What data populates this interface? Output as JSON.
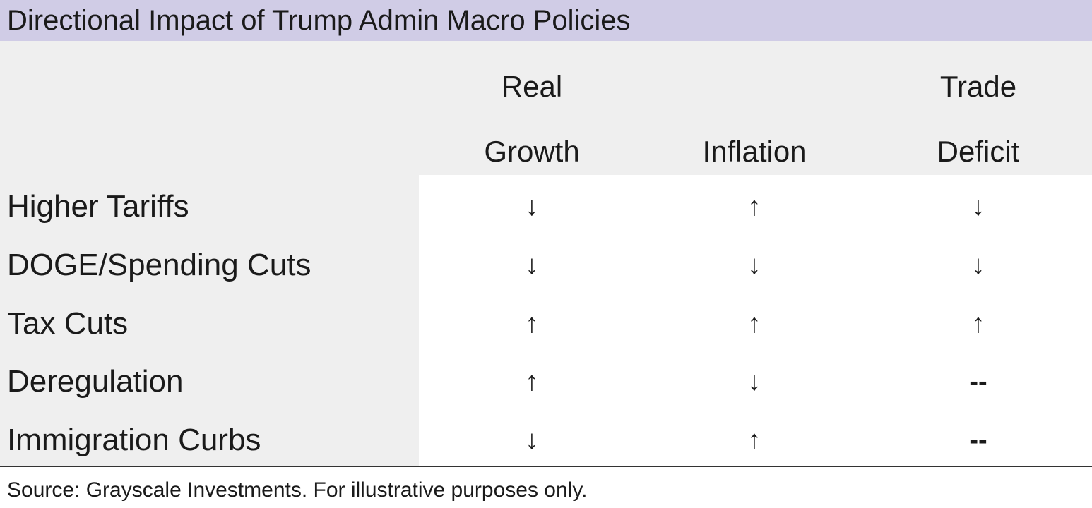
{
  "title": "Directional Impact of Trump Admin Macro Policies",
  "table": {
    "columns": [
      [
        "Real",
        "Growth"
      ],
      [
        "Inflation"
      ],
      [
        "Trade",
        "Deficit"
      ]
    ],
    "rows": [
      {
        "label": "Higher Tariffs",
        "cells": [
          "↓",
          "↑",
          "↓"
        ]
      },
      {
        "label": "DOGE/Spending Cuts",
        "cells": [
          "↓",
          "↓",
          "↓"
        ]
      },
      {
        "label": "Tax Cuts",
        "cells": [
          "↑",
          "↑",
          "↑"
        ]
      },
      {
        "label": "Deregulation",
        "cells": [
          "↑",
          "↓",
          "--"
        ]
      },
      {
        "label": "Immigration Curbs",
        "cells": [
          "↓",
          "↑",
          "--"
        ]
      }
    ]
  },
  "footer": "Source: Grayscale Investments. For illustrative purposes only."
}
